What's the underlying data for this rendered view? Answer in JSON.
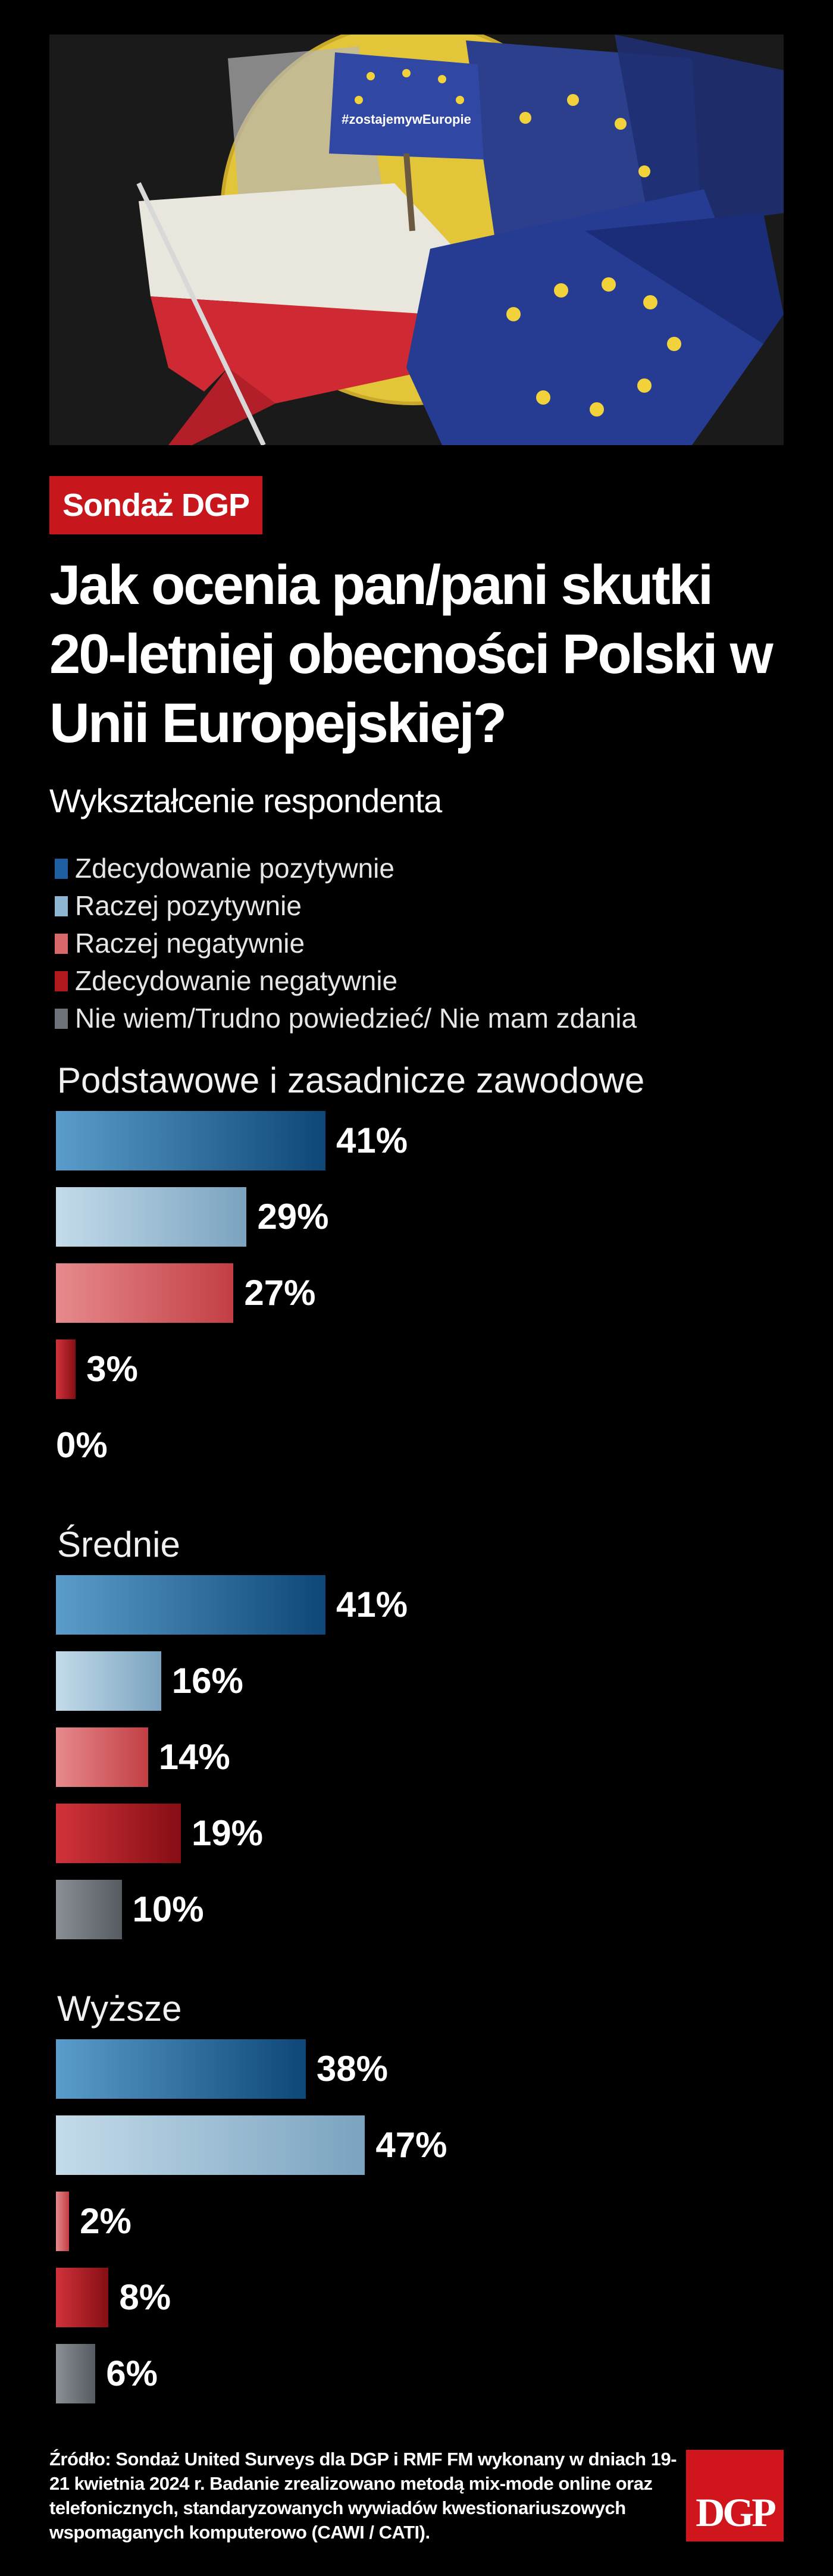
{
  "badge": "Sondaż DGP",
  "title": "Jak ocenia pan/pani skutki 20-letniej obecności Polski w Unii Europejskiej?",
  "subtitle": "Wykształcenie respondenta",
  "hero": {
    "banner_text": "#zostajemywEuropie"
  },
  "legend": [
    {
      "label": "Zdecydowanie pozytywnie",
      "color": "#1d5fa0"
    },
    {
      "label": "Raczej pozytywnie",
      "color": "#8fb6d0"
    },
    {
      "label": "Raczej negatywnie",
      "color": "#d9686a"
    },
    {
      "label": "Zdecydowanie negatywnie",
      "color": "#b0181d"
    },
    {
      "label": "Nie wiem/Trudno powiedzieć/ Nie mam zdania",
      "color": "#6e737a"
    }
  ],
  "chart_data": {
    "type": "bar",
    "orientation": "horizontal",
    "unit": "%",
    "categories": [
      "Podstawowe i zasadnicze zawodowe",
      "Średnie",
      "Wyższe"
    ],
    "series": [
      {
        "name": "Zdecydowanie pozytywnie",
        "values": [
          41,
          41,
          38
        ]
      },
      {
        "name": "Raczej pozytywnie",
        "values": [
          29,
          16,
          47
        ]
      },
      {
        "name": "Raczej negatywnie",
        "values": [
          27,
          14,
          2
        ]
      },
      {
        "name": "Zdecydowanie negatywnie",
        "values": [
          3,
          19,
          8
        ]
      },
      {
        "name": "Nie wiem/Trudno powiedzieć/ Nie mam zdania",
        "values": [
          0,
          10,
          6
        ]
      }
    ],
    "value_labels": [
      [
        "41%",
        "29%",
        "27%",
        "3%",
        "0%"
      ],
      [
        "41%",
        "16%",
        "14%",
        "19%",
        "10%"
      ],
      [
        "38%",
        "47%",
        "2%",
        "8%",
        "6%"
      ]
    ],
    "xlim": [
      0,
      100
    ],
    "grid": false,
    "gradients": [
      [
        "#5a9ccb",
        "#0d4777"
      ],
      [
        "#c3dbea",
        "#7aa3bf"
      ],
      [
        "#e68a8d",
        "#c23f44"
      ],
      [
        "#d2323a",
        "#850e14"
      ],
      [
        "#8a8f96",
        "#565b62"
      ]
    ]
  },
  "source": "Źródło: Sondaż United Surveys dla DGP i RMF FM wykonany w dniach 19-21 kwietnia 2024 r. Badanie zrealizowano metodą mix-mode online oraz telefonicznych, standaryzowanych wywiadów kwestionariuszowych wspomaganych komputerowo (CAWI / CATI).",
  "logo": "DGP"
}
